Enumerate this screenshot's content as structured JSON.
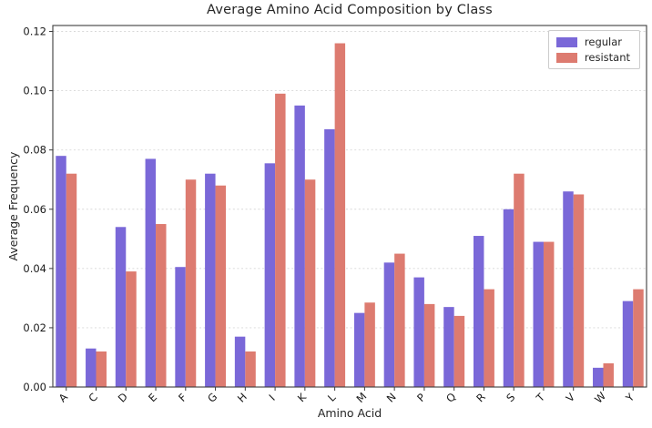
{
  "chart_data": {
    "type": "bar",
    "title": "Average Amino Acid Composition by Class",
    "xlabel": "Amino Acid",
    "ylabel": "Average Frequency",
    "categories": [
      "A",
      "C",
      "D",
      "E",
      "F",
      "G",
      "H",
      "I",
      "K",
      "L",
      "M",
      "N",
      "P",
      "Q",
      "R",
      "S",
      "T",
      "V",
      "W",
      "Y"
    ],
    "series": [
      {
        "name": "regular",
        "color": "#7a68d8",
        "values": [
          0.078,
          0.013,
          0.054,
          0.077,
          0.0405,
          0.072,
          0.017,
          0.0755,
          0.095,
          0.087,
          0.025,
          0.042,
          0.037,
          0.027,
          0.051,
          0.06,
          0.049,
          0.066,
          0.0065,
          0.029
        ]
      },
      {
        "name": "resistant",
        "color": "#dd7b70",
        "values": [
          0.072,
          0.012,
          0.039,
          0.055,
          0.07,
          0.068,
          0.012,
          0.099,
          0.07,
          0.116,
          0.0285,
          0.045,
          0.028,
          0.024,
          0.033,
          0.072,
          0.049,
          0.065,
          0.008,
          0.033
        ]
      }
    ],
    "ylim": [
      0,
      0.122
    ],
    "yticks": [
      0.0,
      0.02,
      0.04,
      0.06,
      0.08,
      0.1,
      0.12
    ],
    "ytick_label_format": "2dp",
    "grid": true,
    "grid_color": "#d8d8d8",
    "spine_color": "#3c3c3c",
    "tick_label_color": "#1a1a1a",
    "legend_position": "upper right",
    "x_tick_rotation_deg": 45
  }
}
